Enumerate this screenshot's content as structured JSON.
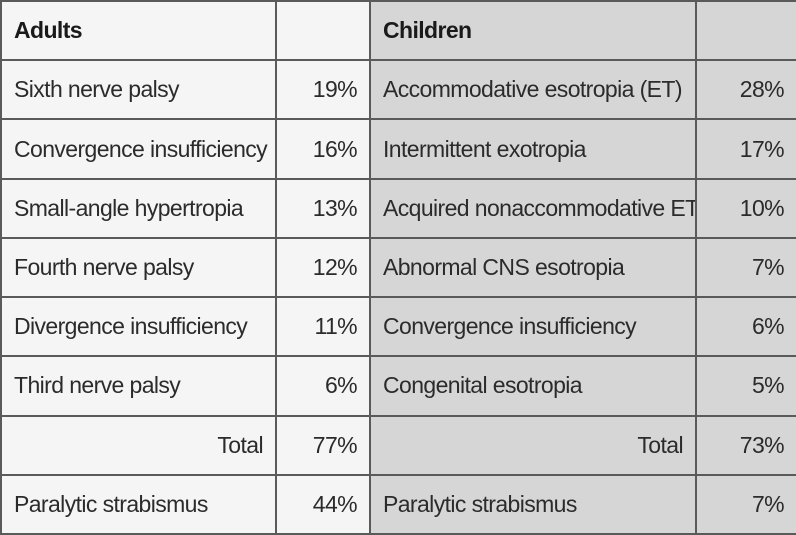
{
  "headers": {
    "adults": "Adults",
    "children": "Children"
  },
  "rows": [
    {
      "adult_label": "Sixth nerve palsy",
      "adult_value": "19%",
      "child_label": "Accommodative esotropia (ET)",
      "child_value": "28%"
    },
    {
      "adult_label": "Convergence insufficiency",
      "adult_value": "16%",
      "child_label": "Intermittent exotropia",
      "child_value": "17%"
    },
    {
      "adult_label": "Small-angle hypertropia",
      "adult_value": "13%",
      "child_label": "Acquired nonaccommodative ET",
      "child_value": "10%"
    },
    {
      "adult_label": "Fourth nerve palsy",
      "adult_value": "12%",
      "child_label": "Abnormal CNS esotropia",
      "child_value": "7%"
    },
    {
      "adult_label": "Divergence insufficiency",
      "adult_value": "11%",
      "child_label": "Convergence insufficiency",
      "child_value": "6%"
    },
    {
      "adult_label": "Third nerve palsy",
      "adult_value": "6%",
      "child_label": "Congenital esotropia",
      "child_value": "5%"
    }
  ],
  "total": {
    "adult_label": "Total",
    "adult_value": "77%",
    "child_label": "Total",
    "child_value": "73%"
  },
  "paralytic": {
    "adult_label": "Paralytic strabismus",
    "adult_value": "44%",
    "child_label": "Paralytic strabismus",
    "child_value": "7%"
  }
}
